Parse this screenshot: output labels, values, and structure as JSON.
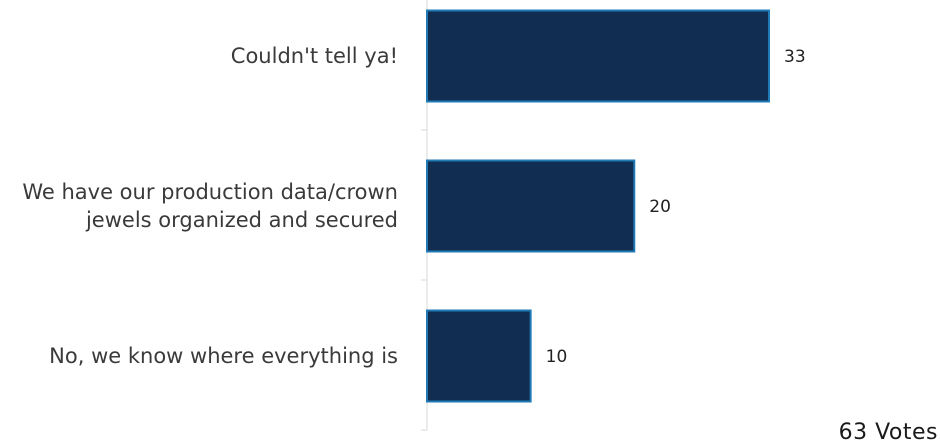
{
  "chart_data": {
    "type": "bar",
    "orientation": "horizontal",
    "categories": [
      [
        "Couldn't tell ya!"
      ],
      [
        "We have our production data/crown",
        "jewels organized and secured"
      ],
      [
        "No, we know where everything is"
      ]
    ],
    "values": [
      33,
      20,
      10
    ],
    "title": "",
    "xlabel": "",
    "ylabel": "",
    "xlim": [
      0,
      50
    ],
    "grid": false,
    "legend": "none",
    "bar_color": "#112d51",
    "bar_edge_color": "#1f7ab5"
  },
  "footer": {
    "total_votes": "63 Votes"
  }
}
